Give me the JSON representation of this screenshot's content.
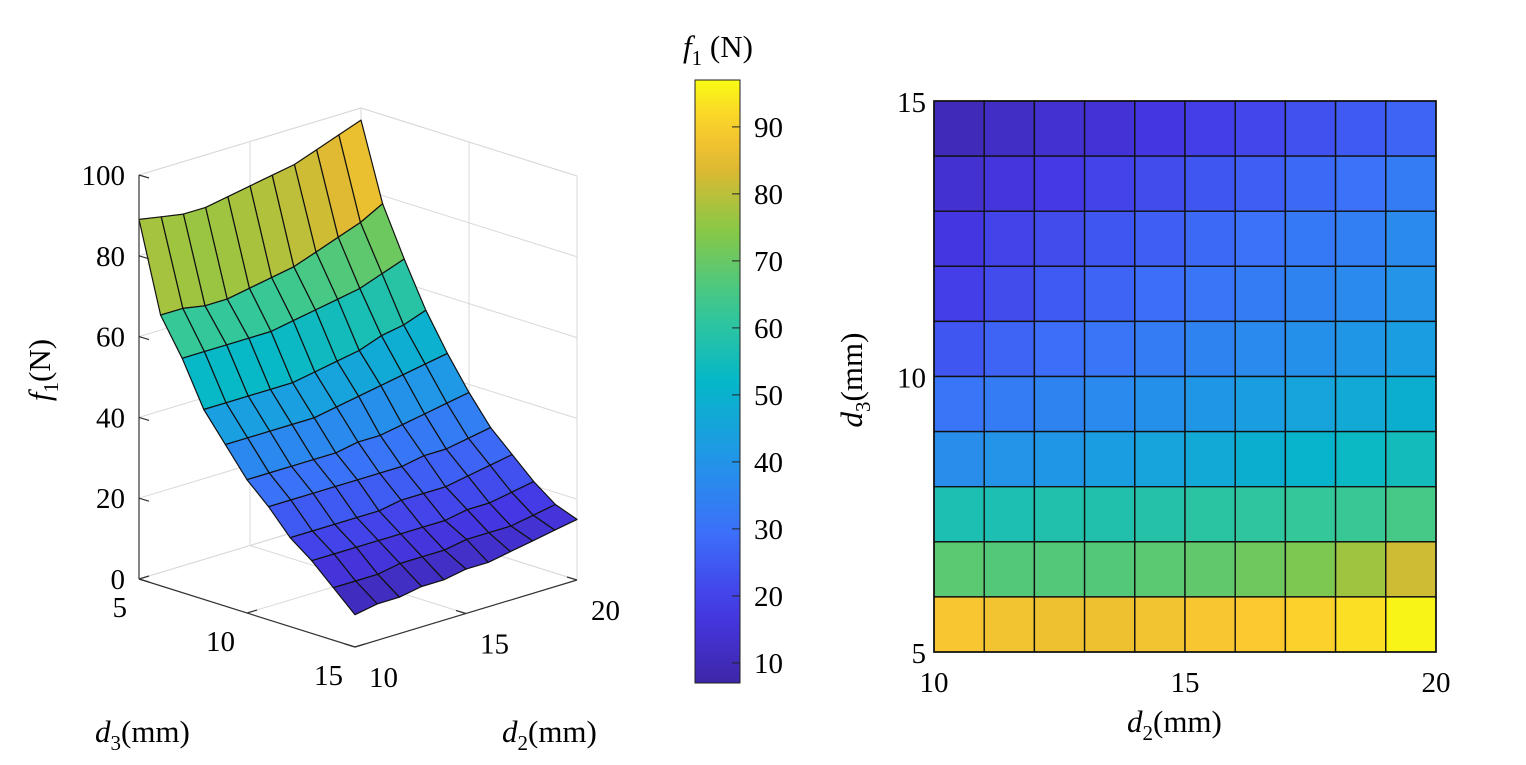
{
  "chart_data": [
    {
      "type": "surface",
      "zlabel": {
        "var": "f",
        "sub": "1",
        "unit": "(N)"
      },
      "xlabel": {
        "var": "d",
        "sub": "2",
        "unit": "(mm)"
      },
      "ylabel": {
        "var": "d",
        "sub": "3",
        "unit": "(mm)"
      },
      "x_ticks": [
        "10",
        "15",
        "20"
      ],
      "y_ticks": [
        "5",
        "10",
        "15"
      ],
      "z_ticks": [
        "0",
        "20",
        "40",
        "60",
        "80",
        "100"
      ],
      "xlim": [
        10,
        20
      ],
      "ylim": [
        5,
        15
      ],
      "zlim": [
        0,
        100
      ],
      "grid": true,
      "x": [
        10,
        11,
        12,
        13,
        14,
        15,
        16,
        17,
        18,
        19,
        20
      ],
      "y": [
        5,
        6,
        7,
        8,
        9,
        10,
        11,
        12,
        13,
        14,
        15
      ],
      "z": [
        [
          89,
          88,
          87,
          87,
          88,
          89,
          90,
          91,
          93,
          95,
          97
        ],
        [
          67,
          67,
          66,
          66,
          67,
          68,
          69,
          71,
          73,
          75,
          78
        ],
        [
          58,
          58,
          58,
          58,
          58,
          59,
          60,
          61,
          62,
          64,
          66
        ],
        [
          47,
          47,
          47,
          47,
          47,
          48,
          49,
          50,
          52,
          53,
          55
        ],
        [
          40,
          40,
          40,
          40,
          40,
          41,
          42,
          43,
          44,
          45,
          46
        ],
        [
          33,
          33,
          33,
          33,
          33,
          34,
          34,
          35,
          36,
          37,
          38
        ],
        [
          28,
          28,
          28,
          28,
          28,
          28,
          28,
          29,
          29,
          30,
          31
        ],
        [
          22,
          22,
          22,
          22,
          22,
          23,
          23,
          23,
          24,
          25,
          26
        ],
        [
          18,
          18,
          18,
          18,
          18,
          18,
          18,
          19,
          19,
          20,
          21
        ],
        [
          13,
          13,
          13,
          14,
          14,
          14,
          15,
          15,
          15,
          16,
          17
        ],
        [
          8,
          9,
          9,
          10,
          10,
          11,
          11,
          12,
          13,
          14,
          15
        ]
      ]
    },
    {
      "type": "colorbar",
      "label": {
        "var": "f",
        "sub": "1",
        "unit": " (N)"
      },
      "range": [
        7,
        97
      ],
      "ticks": [
        "10",
        "20",
        "30",
        "40",
        "50",
        "60",
        "70",
        "80",
        "90"
      ]
    },
    {
      "type": "heatmap",
      "xlabel": {
        "var": "d",
        "sub": "2",
        "unit": "(mm)"
      },
      "ylabel": {
        "var": "d",
        "sub": "3",
        "unit": "(mm)"
      },
      "x_ticks": [
        "10",
        "15",
        "20"
      ],
      "y_ticks": [
        "5",
        "10",
        "15"
      ],
      "xlim": [
        10,
        20
      ],
      "ylim": [
        5,
        15
      ],
      "rows_top_to_bottom": [
        [
          10,
          12,
          14,
          15,
          17,
          19,
          21,
          23,
          25,
          27
        ],
        [
          14,
          16,
          18,
          20,
          22,
          24,
          26,
          28,
          30,
          33
        ],
        [
          17,
          20,
          22,
          24,
          26,
          28,
          30,
          32,
          34,
          37
        ],
        [
          19,
          22,
          25,
          27,
          29,
          31,
          33,
          35,
          37,
          40
        ],
        [
          24,
          27,
          29,
          31,
          33,
          35,
          37,
          39,
          41,
          43
        ],
        [
          31,
          33,
          35,
          37,
          39,
          41,
          43,
          45,
          47,
          49
        ],
        [
          38,
          40,
          41,
          43,
          45,
          47,
          49,
          51,
          53,
          55
        ],
        [
          57,
          57,
          58,
          58,
          59,
          60,
          61,
          62,
          63,
          65
        ],
        [
          68,
          67,
          67,
          67,
          68,
          69,
          71,
          73,
          77,
          82
        ],
        [
          89,
          88,
          87,
          87,
          88,
          89,
          90,
          91,
          93,
          96
        ]
      ]
    }
  ]
}
